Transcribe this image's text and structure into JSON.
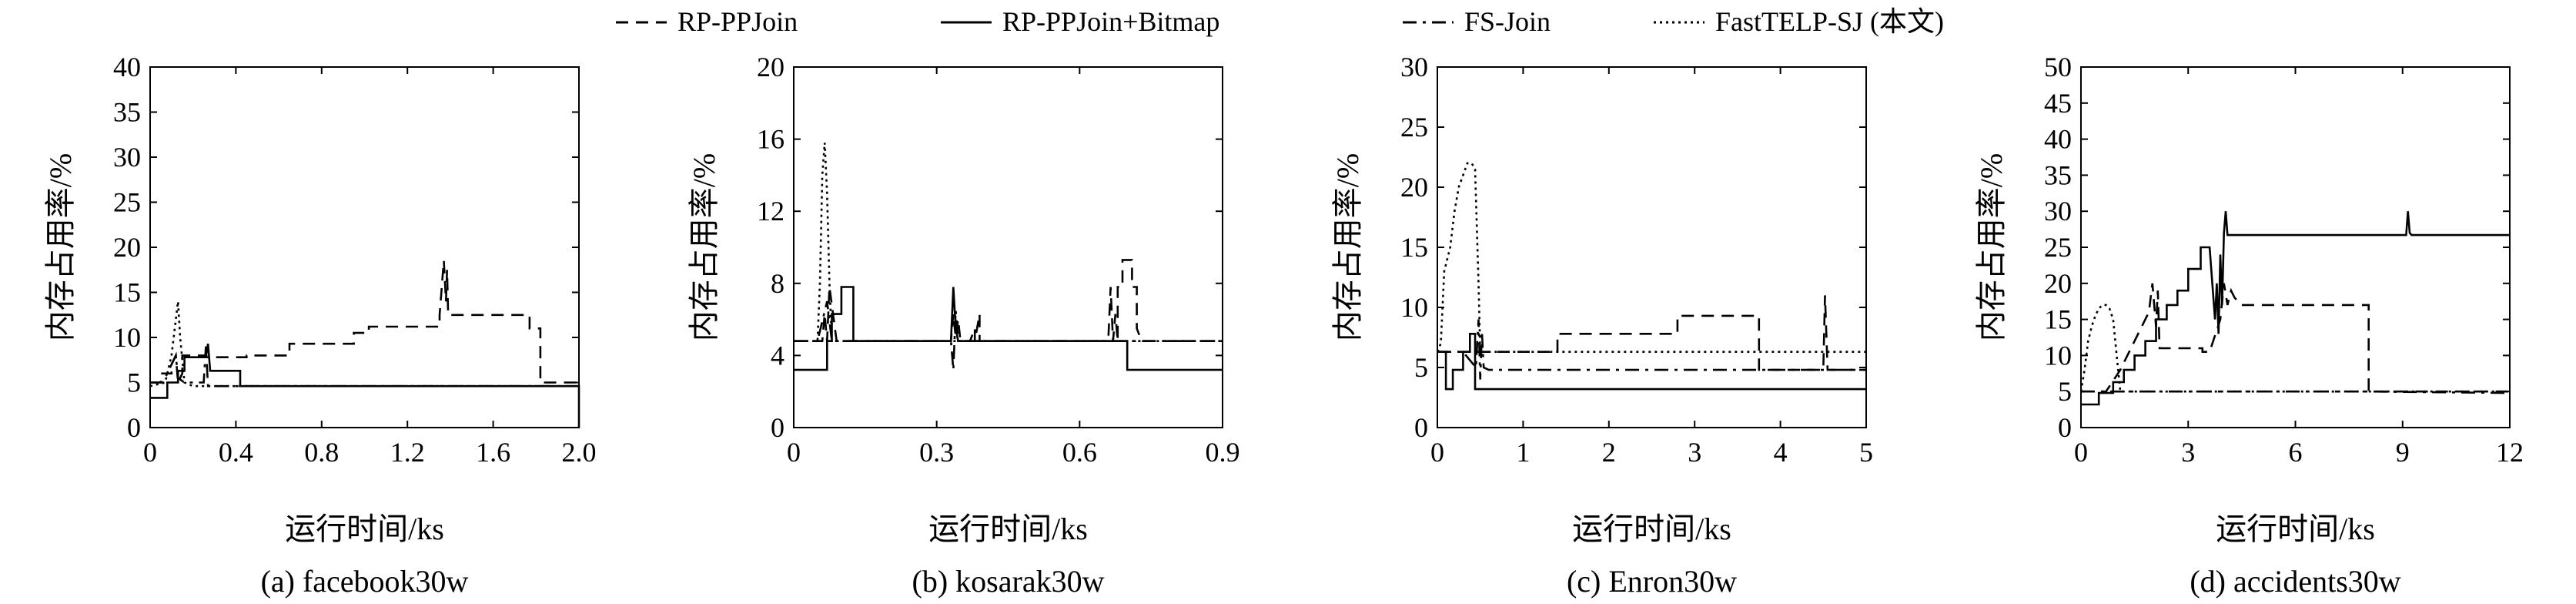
{
  "legend": [
    {
      "name": "RP-PPJoin",
      "dash": "dash"
    },
    {
      "name": "RP-PPJoin+Bitmap",
      "dash": "solid"
    },
    {
      "name": "FS-Join",
      "dash": "dashdot"
    },
    {
      "name": "FastTELP-SJ (本文)",
      "dash": "dot"
    }
  ],
  "chart_data": [
    {
      "type": "line",
      "caption": "(a)  facebook30w",
      "xlabel": "运行时间/ks",
      "ylabel": "内存占用率/%",
      "xlim": [
        0,
        2.0
      ],
      "ylim": [
        0,
        40
      ],
      "xticks": [
        0,
        0.4,
        0.8,
        1.2,
        1.6,
        2.0
      ],
      "xtick_labels": [
        "0",
        "0.4",
        "0.8",
        "1.2",
        "1.6",
        "2.0"
      ],
      "yticks": [
        0,
        5,
        10,
        15,
        20,
        25,
        30,
        35,
        40
      ],
      "ytick_labels": [
        "0",
        "5",
        "10",
        "15",
        "20",
        "25",
        "30",
        "35",
        "40"
      ],
      "grid": false,
      "series": [
        {
          "name": "RP-PPJoin",
          "dash": "dash",
          "x": [
            0,
            0.05,
            0.05,
            0.1,
            0.1,
            0.12,
            0.13,
            0.15,
            0.15,
            0.25,
            0.25,
            0.45,
            0.45,
            0.65,
            0.65,
            0.95,
            0.95,
            1.02,
            1.02,
            1.35,
            1.35,
            1.37,
            1.38,
            1.385,
            1.39,
            1.4,
            1.4,
            1.77,
            1.77,
            1.82,
            1.82,
            2.0
          ],
          "y": [
            5,
            5,
            6,
            6,
            7,
            8,
            5,
            6,
            8,
            8,
            7.8,
            7.8,
            8,
            8,
            9.3,
            9.3,
            10.5,
            10.5,
            11.2,
            11.2,
            12.5,
            18.5,
            14,
            17.5,
            12.5,
            12.5,
            12.5,
            12.5,
            11,
            11,
            5,
            5
          ]
        },
        {
          "name": "RP-PPJoin+Bitmap",
          "dash": "solid",
          "x": [
            0,
            0.08,
            0.08,
            0.13,
            0.13,
            0.16,
            0.16,
            0.26,
            0.27,
            0.28,
            0.28,
            0.42,
            0.42,
            2.0,
            2.0
          ],
          "y": [
            3.3,
            3.3,
            5,
            5,
            6.3,
            6.3,
            7.8,
            7.8,
            9.3,
            6.3,
            6.3,
            6.3,
            4.6,
            4.6,
            0
          ]
        },
        {
          "name": "FS-Join",
          "dash": "dashdot",
          "x": [
            0,
            0.06,
            0.1,
            0.12,
            0.13,
            0.16,
            0.25,
            0.26,
            0.27,
            0.3,
            0.5,
            2.0
          ],
          "y": [
            5,
            5,
            7,
            8,
            5.5,
            5,
            5,
            9,
            4.6,
            4.6,
            4.6,
            4.6
          ]
        },
        {
          "name": "FastTELP-SJ (本文)",
          "dash": "dot",
          "x": [
            0,
            0.07,
            0.1,
            0.12,
            0.13,
            0.14,
            0.16,
            0.2,
            2.0
          ],
          "y": [
            4.6,
            5,
            8,
            12,
            14,
            10,
            5,
            4.6,
            4.6
          ]
        }
      ]
    },
    {
      "type": "line",
      "caption": "(b)  kosarak30w",
      "xlabel": "运行时间/ks",
      "ylabel": "内存占用率/%",
      "xlim": [
        0,
        0.9
      ],
      "ylim": [
        0,
        20
      ],
      "xticks": [
        0,
        0.3,
        0.6,
        0.9
      ],
      "xtick_labels": [
        "0",
        "0.3",
        "0.6",
        "0.9"
      ],
      "yticks": [
        0,
        4,
        8,
        12,
        16,
        20
      ],
      "ytick_labels": [
        "0",
        "4",
        "8",
        "12",
        "16",
        "20"
      ],
      "grid": false,
      "series": [
        {
          "name": "RP-PPJoin",
          "dash": "dash",
          "x": [
            0,
            0.06,
            0.065,
            0.07,
            0.075,
            0.09,
            0.33,
            0.335,
            0.34,
            0.345,
            0.35,
            0.37,
            0.38,
            0.38,
            0.39,
            0.39,
            0.66,
            0.665,
            0.67,
            0.675,
            0.68,
            0.68,
            0.69,
            0.69,
            0.7,
            0.71,
            0.71,
            0.72,
            0.72,
            0.73,
            0.9
          ],
          "y": [
            4.8,
            4.8,
            6.3,
            4.8,
            7.8,
            4.8,
            4.8,
            6.3,
            5,
            6,
            4.8,
            4.8,
            5.5,
            4.8,
            6.3,
            4.8,
            4.8,
            7.8,
            4.8,
            6.3,
            4.8,
            7.8,
            7.8,
            9.3,
            9.3,
            9.3,
            7.8,
            7.8,
            5.5,
            4.8,
            4.8
          ]
        },
        {
          "name": "RP-PPJoin+Bitmap",
          "dash": "solid",
          "x": [
            0,
            0.07,
            0.07,
            0.08,
            0.08,
            0.1,
            0.1,
            0.125,
            0.125,
            0.33,
            0.335,
            0.34,
            0.345,
            0.35,
            0.7,
            0.7,
            0.9
          ],
          "y": [
            3.2,
            3.2,
            4.8,
            4.8,
            6.3,
            6.3,
            7.8,
            7.8,
            4.8,
            4.8,
            7.8,
            5.5,
            4.8,
            4.8,
            4.8,
            3.2,
            3.2
          ]
        },
        {
          "name": "FS-Join",
          "dash": "dashdot",
          "x": [
            0,
            0.05,
            0.07,
            0.08,
            0.33,
            0.335,
            0.34,
            0.345,
            0.35,
            0.66,
            0.7,
            0.9
          ],
          "y": [
            4.8,
            4.8,
            7,
            4.8,
            4.8,
            3.2,
            6.5,
            4.8,
            4.8,
            4.8,
            4.8,
            4.8
          ]
        },
        {
          "name": "FastTELP-SJ (本文)",
          "dash": "dot",
          "x": [
            0,
            0.05,
            0.055,
            0.06,
            0.065,
            0.07,
            0.075,
            0.08,
            0.9
          ],
          "y": [
            4.8,
            4.8,
            8,
            14,
            15.8,
            13,
            8,
            4.8,
            4.8
          ]
        }
      ]
    },
    {
      "type": "line",
      "caption": "(c)  Enron30w",
      "xlabel": "运行时间/ks",
      "ylabel": "内存占用率/%",
      "xlim": [
        0,
        5
      ],
      "ylim": [
        0,
        30
      ],
      "xticks": [
        0,
        1,
        2,
        3,
        4,
        5
      ],
      "xtick_labels": [
        "0",
        "1",
        "2",
        "3",
        "4",
        "5"
      ],
      "yticks": [
        0,
        5,
        10,
        15,
        20,
        25,
        30
      ],
      "ytick_labels": [
        "0",
        "5",
        "10",
        "15",
        "20",
        "25",
        "30"
      ],
      "grid": false,
      "series": [
        {
          "name": "RP-PPJoin",
          "dash": "dash",
          "x": [
            0,
            0.5,
            0.5,
            1.4,
            1.4,
            2.8,
            2.8,
            3.75,
            3.75,
            4.5,
            4.52,
            4.55,
            4.55,
            5.0
          ],
          "y": [
            6.3,
            6.3,
            6.3,
            6.3,
            7.8,
            7.8,
            9.3,
            9.3,
            4.8,
            4.8,
            11,
            4.8,
            4.8,
            4.8
          ]
        },
        {
          "name": "RP-PPJoin+Bitmap",
          "dash": "solid",
          "x": [
            0,
            0.08,
            0.1,
            0.1,
            0.18,
            0.18,
            0.3,
            0.3,
            0.38,
            0.38,
            0.44,
            0.44,
            0.46,
            0.46,
            5.0
          ],
          "y": [
            6.3,
            6.3,
            6.3,
            3.2,
            3.2,
            4.8,
            4.8,
            6.3,
            6.3,
            7.8,
            7.8,
            3.2,
            3.2,
            3.2,
            3.2
          ]
        },
        {
          "name": "FS-Join",
          "dash": "dashdot",
          "x": [
            0,
            0.3,
            0.45,
            0.48,
            0.5,
            0.52,
            0.54,
            0.6,
            5.0
          ],
          "y": [
            6.3,
            6.3,
            5,
            9,
            4,
            8,
            5,
            4.8,
            4.8
          ]
        },
        {
          "name": "FastTELP-SJ (本文)",
          "dash": "dot",
          "x": [
            0,
            0.04,
            0.08,
            0.15,
            0.2,
            0.25,
            0.3,
            0.35,
            0.4,
            0.44,
            0.48,
            0.5,
            0.55,
            0.6,
            5.0
          ],
          "y": [
            6.3,
            7,
            13,
            15,
            18,
            20,
            21,
            22,
            22,
            21.5,
            12,
            6.3,
            6.3,
            6.3,
            6.3
          ]
        }
      ]
    },
    {
      "type": "line",
      "caption": "(d)  accidents30w",
      "xlabel": "运行时间/ks",
      "ylabel": "内存占用率/%",
      "xlim": [
        0,
        12
      ],
      "ylim": [
        0,
        50
      ],
      "xticks": [
        0,
        3,
        6,
        9,
        12
      ],
      "xtick_labels": [
        "0",
        "3",
        "6",
        "9",
        "12"
      ],
      "yticks": [
        0,
        5,
        10,
        15,
        20,
        25,
        30,
        35,
        40,
        45,
        50
      ],
      "ytick_labels": [
        "0",
        "5",
        "10",
        "15",
        "20",
        "25",
        "30",
        "35",
        "40",
        "45",
        "50"
      ],
      "grid": false,
      "series": [
        {
          "name": "RP-PPJoin",
          "dash": "dash",
          "x": [
            0,
            0.7,
            0.9,
            1.1,
            1.3,
            1.5,
            1.7,
            1.9,
            2.0,
            2.1,
            2.15,
            2.2,
            2.5,
            3.0,
            3.4,
            3.4,
            3.6,
            3.9,
            4.0,
            4.1,
            4.2,
            4.3,
            4.5,
            8.05,
            8.05,
            12
          ],
          "y": [
            5,
            5,
            6.5,
            8,
            10,
            12,
            14,
            16,
            20,
            14,
            19,
            11,
            11,
            11,
            11,
            10.5,
            10.5,
            15,
            20,
            17,
            19,
            18,
            17,
            17,
            5,
            5
          ]
        },
        {
          "name": "RP-PPJoin+Bitmap",
          "dash": "solid",
          "x": [
            0,
            0.5,
            0.5,
            0.9,
            0.9,
            1.2,
            1.2,
            1.5,
            1.5,
            1.8,
            1.8,
            2.1,
            2.1,
            2.4,
            2.4,
            2.7,
            2.7,
            3.0,
            3.0,
            3.35,
            3.35,
            3.6,
            3.75,
            3.8,
            3.85,
            3.9,
            3.95,
            4.0,
            4.05,
            4.1,
            4.2,
            9.1,
            9.15,
            9.2,
            9.25,
            12
          ],
          "y": [
            3.2,
            3.2,
            4.8,
            4.8,
            6.3,
            6.3,
            8,
            8,
            10,
            10,
            12,
            12,
            15,
            15,
            17,
            17,
            19,
            19,
            22,
            22,
            25,
            25,
            15,
            20,
            13,
            24,
            17,
            27,
            30,
            26.7,
            26.7,
            26.7,
            30,
            27,
            26.7,
            26.7
          ]
        },
        {
          "name": "FS-Join",
          "dash": "dashdot",
          "x": [
            0,
            8.1,
            12
          ],
          "y": [
            5,
            5,
            4.8
          ]
        },
        {
          "name": "FastTELP-SJ (本文)",
          "dash": "dot",
          "x": [
            0,
            0.1,
            0.2,
            0.3,
            0.4,
            0.5,
            0.6,
            0.7,
            0.8,
            0.9,
            1.0,
            1.1,
            12
          ],
          "y": [
            5,
            8,
            12,
            14,
            15.5,
            16.5,
            17,
            17,
            16.5,
            15,
            10,
            5,
            5
          ]
        }
      ]
    }
  ]
}
